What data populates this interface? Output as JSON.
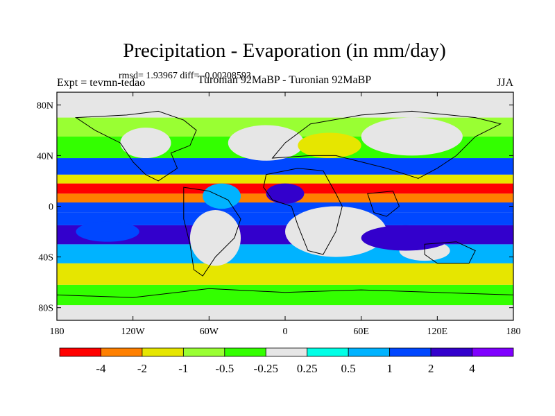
{
  "chart_data": {
    "type": "heatmap",
    "title": "Precipitation - Evaporation (in mm/day)",
    "stats": "rmsd= 1.93967 diff= -0.00208593",
    "left_label": "Expt = tevmn-tedao",
    "center_label": "Turonian  92MaBP - Turonian  92MaBP",
    "right_label": "JJA",
    "xlim": [
      -180,
      180
    ],
    "ylim": [
      -90,
      90
    ],
    "x_ticks": [
      {
        "value": -180,
        "label": "180"
      },
      {
        "value": -120,
        "label": "120W"
      },
      {
        "value": -60,
        "label": "60W"
      },
      {
        "value": 0,
        "label": "0"
      },
      {
        "value": 60,
        "label": "60E"
      },
      {
        "value": 120,
        "label": "120E"
      },
      {
        "value": 180,
        "label": "180"
      }
    ],
    "y_ticks": [
      {
        "value": 80,
        "label": "80N"
      },
      {
        "value": 40,
        "label": "40N"
      },
      {
        "value": 0,
        "label": "0"
      },
      {
        "value": -40,
        "label": "40S"
      },
      {
        "value": -80,
        "label": "80S"
      }
    ],
    "colorbar": {
      "colors": [
        "#ff0000",
        "#ff8000",
        "#e6e600",
        "#99ff33",
        "#33ff00",
        "#e6e6e6",
        "#00ffe6",
        "#00b3ff",
        "#0047ff",
        "#3300cc",
        "#8000ff"
      ],
      "boundaries": [
        {
          "value": -4,
          "label": "-4"
        },
        {
          "value": -2,
          "label": "-2"
        },
        {
          "value": -1,
          "label": "-1"
        },
        {
          "value": -0.5,
          "label": "-0.5"
        },
        {
          "value": -0.25,
          "label": "-0.25"
        },
        {
          "value": 0.25,
          "label": "0.25"
        },
        {
          "value": 0.5,
          "label": "0.5"
        },
        {
          "value": 1,
          "label": "1"
        },
        {
          "value": 2,
          "label": "2"
        },
        {
          "value": 4,
          "label": "4"
        }
      ]
    },
    "field_bands": [
      {
        "lat": [
          -90,
          -78
        ],
        "value": 0.0
      },
      {
        "lat": [
          -78,
          -62
        ],
        "value": -0.4
      },
      {
        "lat": [
          -62,
          -45
        ],
        "value": -1.5
      },
      {
        "lat": [
          -45,
          -30
        ],
        "value": 0.8
      },
      {
        "lat": [
          -30,
          -15
        ],
        "value": 3.0
      },
      {
        "lat": [
          -15,
          -5
        ],
        "value": 1.2
      },
      {
        "lat": [
          -5,
          3
        ],
        "value": 1.5
      },
      {
        "lat": [
          3,
          10
        ],
        "value": -2.5
      },
      {
        "lat": [
          10,
          18
        ],
        "value": -5.0
      },
      {
        "lat": [
          18,
          25
        ],
        "value": -1.5
      },
      {
        "lat": [
          25,
          38
        ],
        "value": 1.5
      },
      {
        "lat": [
          38,
          55
        ],
        "value": -0.4
      },
      {
        "lat": [
          55,
          70
        ],
        "value": -0.7
      },
      {
        "lat": [
          70,
          90
        ],
        "value": 0.0
      }
    ],
    "field_patches": [
      {
        "lon": -110,
        "lat": 50,
        "rlon": 20,
        "rlat": 12,
        "value": 0.0
      },
      {
        "lon": -15,
        "lat": 50,
        "rlon": 30,
        "rlat": 14,
        "value": 0.0
      },
      {
        "lon": 35,
        "lat": 48,
        "rlon": 25,
        "rlat": 10,
        "value": -1.5
      },
      {
        "lon": 100,
        "lat": 55,
        "rlon": 40,
        "rlat": 15,
        "value": 0.0
      },
      {
        "lon": -50,
        "lat": 8,
        "rlon": 15,
        "rlat": 10,
        "value": 0.8
      },
      {
        "lon": 0,
        "lat": 10,
        "rlon": 15,
        "rlat": 8,
        "value": 3.0
      },
      {
        "lon": 40,
        "lat": -20,
        "rlon": 40,
        "rlat": 20,
        "value": 0.0
      },
      {
        "lon": -55,
        "lat": -25,
        "rlon": 20,
        "rlat": 22,
        "value": 0.0
      },
      {
        "lon": 110,
        "lat": -35,
        "rlon": 20,
        "rlat": 8,
        "value": 0.0
      },
      {
        "lon": 95,
        "lat": -25,
        "rlon": 35,
        "rlat": 10,
        "value": 3.5
      },
      {
        "lon": -140,
        "lat": -20,
        "rlon": 25,
        "rlat": 8,
        "value": 1.5
      }
    ],
    "continents": [
      {
        "name": "north-america",
        "points": [
          [
            -165,
            70
          ],
          [
            -125,
            72
          ],
          [
            -100,
            75
          ],
          [
            -80,
            68
          ],
          [
            -70,
            60
          ],
          [
            -75,
            48
          ],
          [
            -90,
            42
          ],
          [
            -85,
            30
          ],
          [
            -100,
            20
          ],
          [
            -110,
            25
          ],
          [
            -120,
            35
          ],
          [
            -130,
            50
          ],
          [
            -150,
            60
          ]
        ]
      },
      {
        "name": "south-america",
        "points": [
          [
            -80,
            15
          ],
          [
            -60,
            12
          ],
          [
            -45,
            5
          ],
          [
            -35,
            -10
          ],
          [
            -40,
            -25
          ],
          [
            -55,
            -40
          ],
          [
            -65,
            -55
          ],
          [
            -72,
            -50
          ],
          [
            -75,
            -30
          ],
          [
            -80,
            -10
          ]
        ]
      },
      {
        "name": "africa",
        "points": [
          [
            -15,
            25
          ],
          [
            10,
            30
          ],
          [
            30,
            28
          ],
          [
            40,
            10
          ],
          [
            45,
            0
          ],
          [
            40,
            -20
          ],
          [
            30,
            -38
          ],
          [
            18,
            -35
          ],
          [
            10,
            -15
          ],
          [
            5,
            0
          ],
          [
            -10,
            5
          ],
          [
            -17,
            15
          ]
        ]
      },
      {
        "name": "eurasia",
        "points": [
          [
            -10,
            38
          ],
          [
            0,
            50
          ],
          [
            20,
            65
          ],
          [
            60,
            72
          ],
          [
            100,
            75
          ],
          [
            150,
            70
          ],
          [
            170,
            65
          ],
          [
            150,
            55
          ],
          [
            135,
            40
          ],
          [
            120,
            30
          ],
          [
            105,
            22
          ],
          [
            80,
            30
          ],
          [
            60,
            35
          ],
          [
            40,
            40
          ],
          [
            20,
            40
          ]
        ]
      },
      {
        "name": "india",
        "points": [
          [
            65,
            10
          ],
          [
            85,
            12
          ],
          [
            90,
            0
          ],
          [
            80,
            -8
          ],
          [
            70,
            -5
          ]
        ]
      },
      {
        "name": "australia",
        "points": [
          [
            110,
            -30
          ],
          [
            135,
            -28
          ],
          [
            150,
            -35
          ],
          [
            145,
            -45
          ],
          [
            120,
            -45
          ],
          [
            110,
            -38
          ]
        ]
      },
      {
        "name": "antarctica",
        "points": [
          [
            -180,
            -70
          ],
          [
            -120,
            -72
          ],
          [
            -60,
            -65
          ],
          [
            0,
            -68
          ],
          [
            60,
            -66
          ],
          [
            120,
            -68
          ],
          [
            180,
            -70
          ],
          [
            180,
            -90
          ],
          [
            -180,
            -90
          ]
        ]
      }
    ]
  }
}
